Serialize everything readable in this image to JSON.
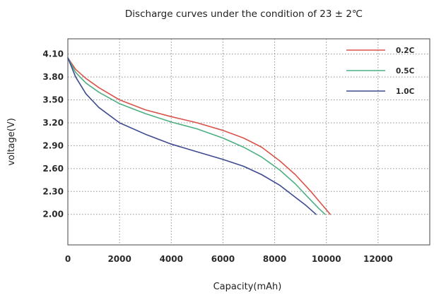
{
  "chart_data": {
    "type": "line",
    "title": "Discharge curves under the condition of 23 ± 2℃",
    "xlabel": "Capacity(mAh)",
    "ylabel": "voltage(V)",
    "xlim": [
      0,
      14000
    ],
    "ylim": [
      1.6,
      4.3
    ],
    "xticks": [
      0,
      2000,
      4000,
      6000,
      8000,
      10000,
      12000
    ],
    "xtick_labels": [
      "0",
      "2000",
      "4000",
      "6000",
      "8000",
      "10000",
      "12000"
    ],
    "yticks": [
      4.1,
      3.8,
      3.5,
      3.2,
      2.9,
      2.6,
      2.3,
      2.0
    ],
    "ytick_labels": [
      "4.10",
      "3.80",
      "3.50",
      "3.20",
      "2.90",
      "2.60",
      "2.30",
      "2.00"
    ],
    "grid": true,
    "legend_position": "top-right",
    "series": [
      {
        "name": "0.2C",
        "color": "#d9534a",
        "x": [
          0,
          300,
          700,
          1200,
          2000,
          3000,
          4000,
          5000,
          6000,
          6800,
          7500,
          8200,
          8800,
          9400,
          9800,
          10150
        ],
        "y": [
          4.05,
          3.9,
          3.78,
          3.66,
          3.5,
          3.37,
          3.28,
          3.2,
          3.1,
          3.0,
          2.88,
          2.7,
          2.52,
          2.3,
          2.14,
          2.0
        ]
      },
      {
        "name": "0.5C",
        "color": "#4caf82",
        "x": [
          0,
          300,
          700,
          1200,
          2000,
          3000,
          4000,
          5000,
          6000,
          6800,
          7500,
          8200,
          8800,
          9300,
          9700,
          9950
        ],
        "y": [
          4.05,
          3.86,
          3.72,
          3.6,
          3.45,
          3.32,
          3.21,
          3.12,
          3.0,
          2.88,
          2.75,
          2.58,
          2.4,
          2.22,
          2.08,
          2.0
        ]
      },
      {
        "name": "1.0C",
        "color": "#3d4a8f",
        "x": [
          0,
          300,
          700,
          1200,
          2000,
          3000,
          4000,
          5000,
          6000,
          6800,
          7500,
          8200,
          8700,
          9200,
          9600
        ],
        "y": [
          4.05,
          3.8,
          3.58,
          3.4,
          3.2,
          3.05,
          2.92,
          2.82,
          2.72,
          2.63,
          2.52,
          2.38,
          2.25,
          2.12,
          2.0
        ]
      }
    ]
  }
}
